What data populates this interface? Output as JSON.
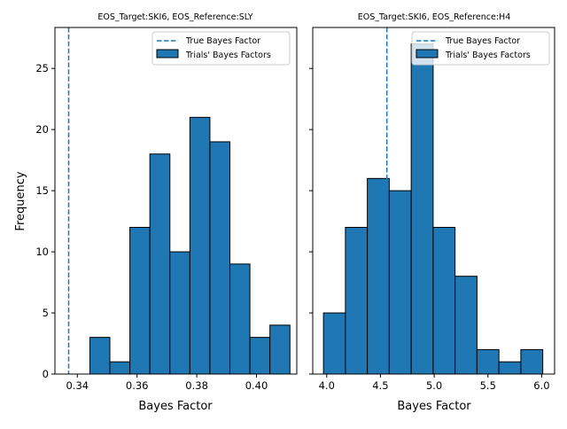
{
  "figure": {
    "ylabel": "Frequency",
    "colors": {
      "bar": "#1f77b4",
      "edge": "#000000",
      "true_line": "#1f77b4"
    }
  },
  "chart_data": [
    {
      "type": "histogram",
      "title": "EOS_Target:SKI6, EOS_Reference:SLY",
      "xlabel": "Bayes Factor",
      "ylabel": "Frequency",
      "xlim": [
        0.3325,
        0.4135
      ],
      "ylim": [
        0,
        28.35
      ],
      "xticks": [
        0.34,
        0.36,
        0.38,
        0.4
      ],
      "xtick_labels": [
        "0.34",
        "0.36",
        "0.38",
        "0.40"
      ],
      "yticks": [
        0,
        5,
        10,
        15,
        20,
        25
      ],
      "ytick_labels": [
        "0",
        "5",
        "10",
        "15",
        "20",
        "25"
      ],
      "bin_edges": [
        0.3442,
        0.3509,
        0.3576,
        0.3643,
        0.371,
        0.3777,
        0.3844,
        0.3911,
        0.3978,
        0.4045,
        0.4112
      ],
      "counts": [
        3,
        1,
        12,
        18,
        10,
        21,
        19,
        9,
        3,
        4
      ],
      "true_bayes_factor": 0.3371,
      "legend": {
        "position": "top-right",
        "entries": [
          "True Bayes Factor",
          "Trials' Bayes Factors"
        ]
      }
    },
    {
      "type": "histogram",
      "title": "EOS_Target:SKI6, EOS_Reference:H4",
      "xlabel": "Bayes Factor",
      "ylabel": "",
      "xlim": [
        3.87,
        6.12
      ],
      "ylim": [
        0,
        28.35
      ],
      "xticks": [
        4.0,
        4.5,
        5.0,
        5.5,
        6.0
      ],
      "xtick_labels": [
        "4.0",
        "4.5",
        "5.0",
        "5.5",
        "6.0"
      ],
      "yticks": [
        0,
        5,
        10,
        15,
        20,
        25
      ],
      "ytick_labels": [
        "",
        "",
        "",
        "",
        "",
        ""
      ],
      "bin_edges": [
        3.97,
        4.174,
        4.378,
        4.582,
        4.786,
        4.99,
        5.194,
        5.398,
        5.602,
        5.806,
        6.01
      ],
      "counts": [
        5,
        12,
        16,
        15,
        27,
        12,
        8,
        2,
        1,
        2
      ],
      "true_bayes_factor": 4.56,
      "legend": {
        "position": "top-right",
        "entries": [
          "True Bayes Factor",
          "Trials' Bayes Factors"
        ]
      }
    }
  ]
}
